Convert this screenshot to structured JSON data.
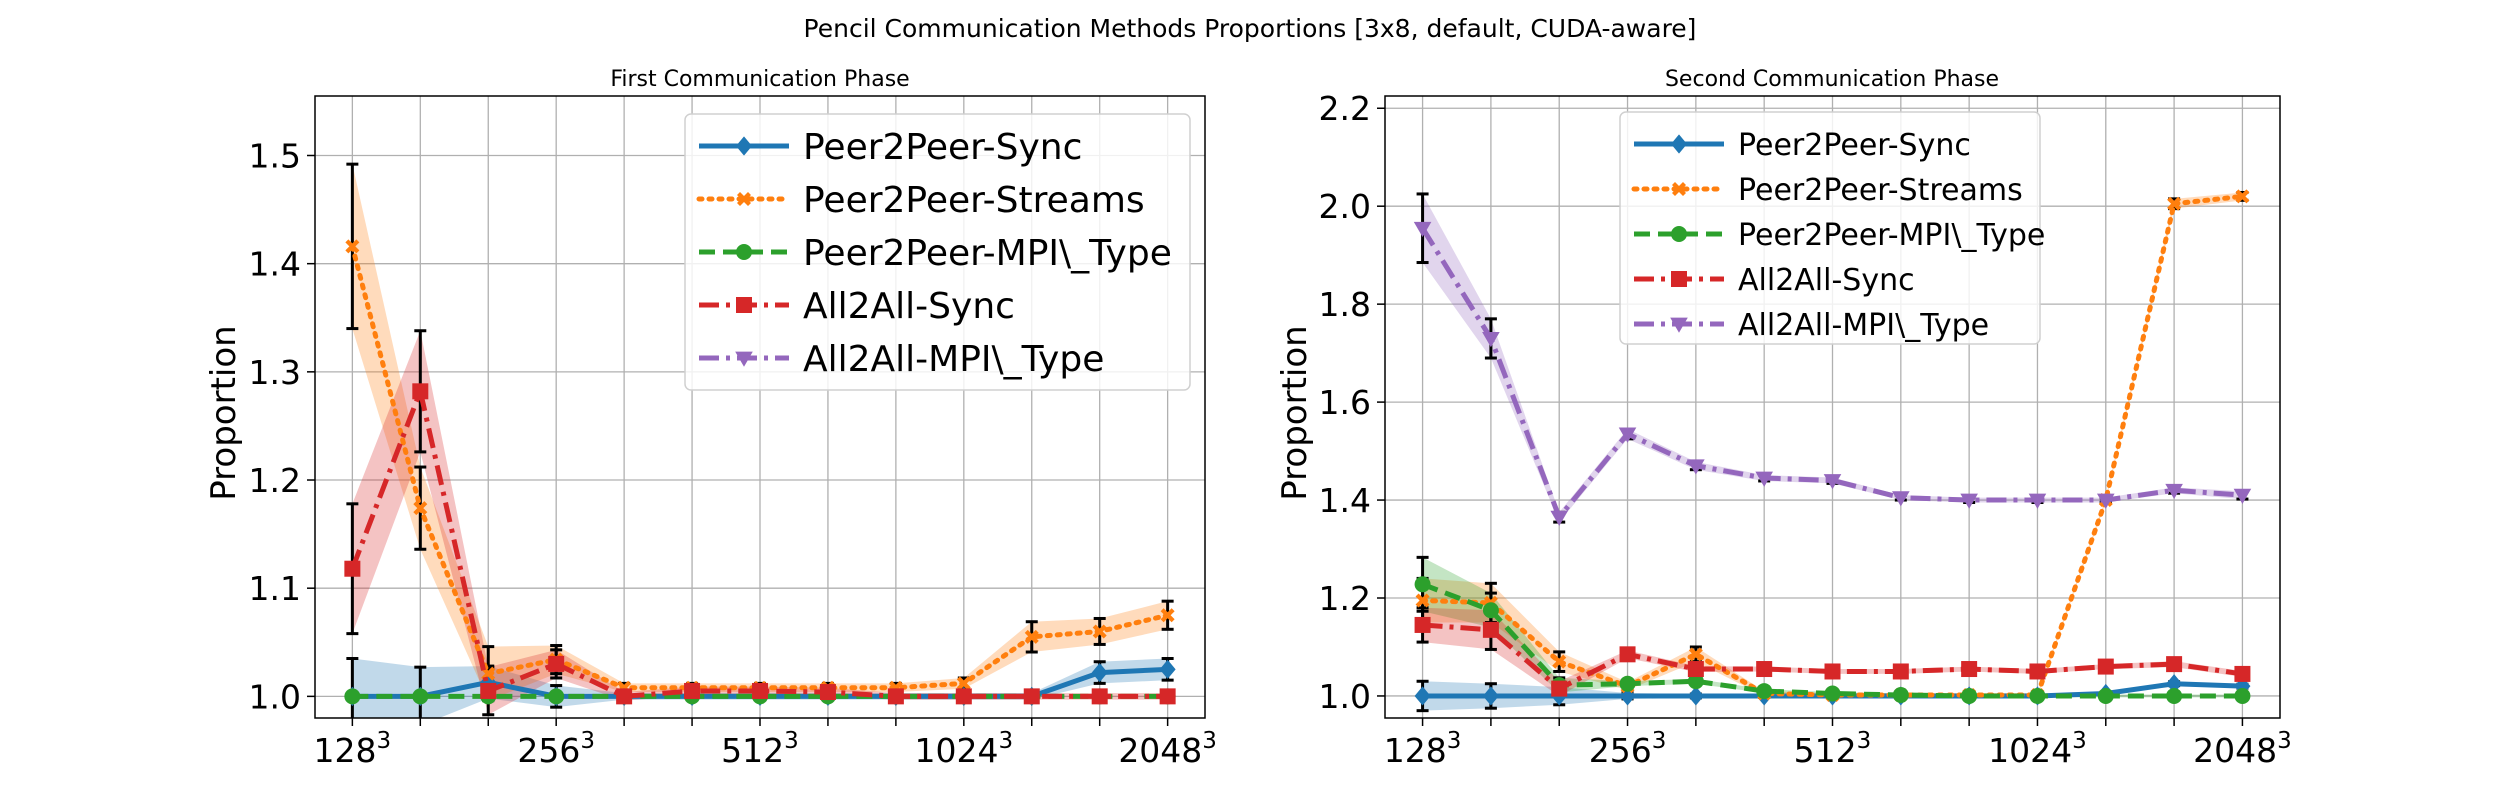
{
  "suptitle": "Pencil Communication Methods Proportions [3x8, default, CUDA-aware]",
  "colors": {
    "Peer2Peer-Sync": "#1f77b4",
    "Peer2Peer-Streams": "#ff7f0e",
    "Peer2Peer-MPI\\_Type": "#2ca02c",
    "All2All-Sync": "#d62728",
    "All2All-MPI\\_Type": "#9467bd"
  },
  "chart_data": [
    {
      "type": "line",
      "title": "First Communication Phase",
      "ylabel": "Proportion",
      "xlabel": "",
      "x": [
        0,
        1,
        2,
        3,
        4,
        5,
        6,
        7,
        8,
        9,
        10,
        11,
        12
      ],
      "x_tick_labels": [
        {
          "x": 0,
          "base": "128",
          "exp": "3"
        },
        {
          "x": 3,
          "base": "256",
          "exp": "3"
        },
        {
          "x": 6,
          "base": "512",
          "exp": "3"
        },
        {
          "x": 9,
          "base": "1024",
          "exp": "3"
        },
        {
          "x": 12,
          "base": "2048",
          "exp": "3"
        }
      ],
      "xlim": [
        -0.55,
        12.55
      ],
      "ylim": [
        0.98,
        1.555
      ],
      "yticks": [
        1.0,
        1.1,
        1.2,
        1.3,
        1.4,
        1.5
      ],
      "grid": true,
      "legend_position": "top-right",
      "series": [
        {
          "name": "Peer2Peer-Sync",
          "style": "solid",
          "marker": "diamond",
          "values": [
            1.0,
            1.0,
            1.013,
            1.0,
            1.0,
            1.0,
            1.0,
            1.0,
            1.0,
            1.0,
            1.0,
            1.022,
            1.025
          ],
          "err": [
            0.035,
            0.027,
            0.015,
            0.01,
            0.003,
            0.003,
            0.003,
            0.003,
            0.003,
            0.003,
            0.003,
            0.01,
            0.01
          ],
          "band": [
            0.035,
            0.027,
            0.015,
            0.01,
            0.003,
            0.003,
            0.003,
            0.003,
            0.003,
            0.003,
            0.003,
            0.01,
            0.01
          ]
        },
        {
          "name": "Peer2Peer-Streams",
          "style": "dotted",
          "marker": "x",
          "values": [
            1.416,
            1.174,
            1.021,
            1.034,
            1.008,
            1.008,
            1.008,
            1.008,
            1.008,
            1.012,
            1.055,
            1.06,
            1.075
          ],
          "err": [
            0.076,
            0.038,
            0.025,
            0.013,
            0.004,
            0.004,
            0.004,
            0.004,
            0.004,
            0.005,
            0.014,
            0.012,
            0.013
          ],
          "band": [
            0.076,
            0.038,
            0.025,
            0.013,
            0.004,
            0.004,
            0.004,
            0.004,
            0.004,
            0.005,
            0.014,
            0.012,
            0.013
          ]
        },
        {
          "name": "Peer2Peer-MPI\\_Type",
          "style": "dashed",
          "marker": "circle",
          "values": [
            1.0,
            1.0,
            1.0,
            1.0,
            1.0,
            1.0,
            1.0,
            1.0,
            1.0,
            1.0,
            1.0,
            1.0,
            1.0
          ],
          "err": [
            0,
            0,
            0,
            0,
            0,
            0,
            0,
            0,
            0,
            0,
            0,
            0,
            0
          ],
          "band": [
            0,
            0,
            0,
            0,
            0,
            0,
            0,
            0,
            0,
            0,
            0,
            0,
            0
          ]
        },
        {
          "name": "All2All-Sync",
          "style": "dashdot",
          "marker": "square",
          "values": [
            1.118,
            1.282,
            1.005,
            1.03,
            1.0,
            1.005,
            1.005,
            1.004,
            1.0,
            1.0,
            1.0,
            1.0,
            1.0
          ],
          "err": [
            0.06,
            0.056,
            0.022,
            0.013,
            0.004,
            0.004,
            0.004,
            0.004,
            0.003,
            0.003,
            0.003,
            0.003,
            0.003
          ],
          "band": [
            0.06,
            0.056,
            0.022,
            0.013,
            0.004,
            0.004,
            0.004,
            0.004,
            0.003,
            0.003,
            0.003,
            0.003,
            0.003
          ]
        }
      ],
      "legend_entries": [
        "Peer2Peer-Sync",
        "Peer2Peer-Streams",
        "Peer2Peer-MPI\\_Type",
        "All2All-Sync",
        "All2All-MPI\\_Type"
      ]
    },
    {
      "type": "line",
      "title": "Second Communication Phase",
      "ylabel": "Proportion",
      "xlabel": "",
      "x": [
        0,
        1,
        2,
        3,
        4,
        5,
        6,
        7,
        8,
        9,
        10,
        11,
        12
      ],
      "x_tick_labels": [
        {
          "x": 0,
          "base": "128",
          "exp": "3"
        },
        {
          "x": 3,
          "base": "256",
          "exp": "3"
        },
        {
          "x": 6,
          "base": "512",
          "exp": "3"
        },
        {
          "x": 9,
          "base": "1024",
          "exp": "3"
        },
        {
          "x": 12,
          "base": "2048",
          "exp": "3"
        }
      ],
      "xlim": [
        -0.55,
        12.55
      ],
      "ylim": [
        0.955,
        2.225
      ],
      "yticks": [
        1.0,
        1.2,
        1.4,
        1.6,
        1.8,
        2.0,
        2.2
      ],
      "grid": true,
      "legend_position": "top-center",
      "series": [
        {
          "name": "Peer2Peer-Sync",
          "style": "solid",
          "marker": "diamond",
          "values": [
            1.0,
            1.0,
            1.0,
            1.0,
            1.0,
            1.0,
            1.0,
            1.0,
            1.0,
            1.0,
            1.005,
            1.025,
            1.02
          ],
          "err": [
            0.03,
            0.025,
            0.018,
            0.006,
            0.004,
            0.003,
            0.003,
            0.003,
            0.003,
            0.003,
            0.003,
            0.004,
            0.004
          ],
          "band": [
            0.03,
            0.025,
            0.018,
            0.006,
            0.004,
            0.003,
            0.003,
            0.003,
            0.003,
            0.003,
            0.003,
            0.004,
            0.004
          ]
        },
        {
          "name": "Peer2Peer-Streams",
          "style": "dotted",
          "marker": "x",
          "values": [
            1.195,
            1.19,
            1.07,
            1.02,
            1.085,
            1.005,
            1.002,
            1.002,
            1.002,
            1.002,
            1.4,
            2.005,
            2.02
          ],
          "err": [
            0.045,
            0.04,
            0.02,
            0.008,
            0.015,
            0.005,
            0.004,
            0.004,
            0.004,
            0.004,
            0.004,
            0.01,
            0.008
          ],
          "band": [
            0.045,
            0.04,
            0.02,
            0.008,
            0.015,
            0.005,
            0.004,
            0.004,
            0.004,
            0.004,
            0.004,
            0.01,
            0.008
          ]
        },
        {
          "name": "Peer2Peer-MPI\\_Type",
          "style": "dashed",
          "marker": "circle",
          "values": [
            1.228,
            1.175,
            1.022,
            1.025,
            1.03,
            1.01,
            1.005,
            1.002,
            1.0,
            1.0,
            1.0,
            1.0,
            1.0
          ],
          "err": [
            0.055,
            0.035,
            0.015,
            0.005,
            0.005,
            0.004,
            0.003,
            0.003,
            0.003,
            0.003,
            0.003,
            0.003,
            0.003
          ],
          "band": [
            0.055,
            0.035,
            0.015,
            0.005,
            0.005,
            0.004,
            0.003,
            0.003,
            0.003,
            0.003,
            0.003,
            0.003,
            0.003
          ]
        },
        {
          "name": "All2All-Sync",
          "style": "dashdot",
          "marker": "square",
          "values": [
            1.145,
            1.135,
            1.015,
            1.085,
            1.055,
            1.055,
            1.05,
            1.05,
            1.055,
            1.05,
            1.06,
            1.065,
            1.045
          ],
          "err": [
            0.035,
            0.04,
            0.015,
            0.008,
            0.006,
            0.005,
            0.005,
            0.005,
            0.005,
            0.005,
            0.005,
            0.006,
            0.006
          ],
          "band": [
            0.035,
            0.04,
            0.015,
            0.008,
            0.006,
            0.005,
            0.005,
            0.005,
            0.005,
            0.005,
            0.005,
            0.006,
            0.006
          ]
        },
        {
          "name": "All2All-MPI\\_Type",
          "style": "dashdot",
          "marker": "triangle-down",
          "values": [
            1.955,
            1.73,
            1.365,
            1.535,
            1.47,
            1.445,
            1.44,
            1.405,
            1.4,
            1.4,
            1.4,
            1.42,
            1.41
          ],
          "err": [
            0.07,
            0.04,
            0.01,
            0.01,
            0.008,
            0.006,
            0.006,
            0.005,
            0.005,
            0.005,
            0.005,
            0.006,
            0.008
          ],
          "band": [
            0.07,
            0.04,
            0.01,
            0.01,
            0.008,
            0.006,
            0.006,
            0.005,
            0.005,
            0.005,
            0.005,
            0.006,
            0.008
          ]
        }
      ],
      "legend_entries": [
        "Peer2Peer-Sync",
        "Peer2Peer-Streams",
        "Peer2Peer-MPI\\_Type",
        "All2All-Sync",
        "All2All-MPI\\_Type"
      ]
    }
  ]
}
